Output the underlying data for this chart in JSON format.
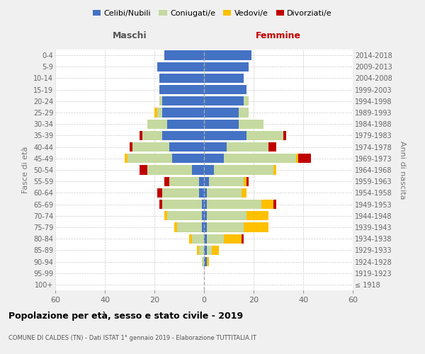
{
  "age_groups": [
    "100+",
    "95-99",
    "90-94",
    "85-89",
    "80-84",
    "75-79",
    "70-74",
    "65-69",
    "60-64",
    "55-59",
    "50-54",
    "45-49",
    "40-44",
    "35-39",
    "30-34",
    "25-29",
    "20-24",
    "15-19",
    "10-14",
    "5-9",
    "0-4"
  ],
  "birth_years": [
    "≤ 1918",
    "1919-1923",
    "1924-1928",
    "1929-1933",
    "1934-1938",
    "1939-1943",
    "1944-1948",
    "1949-1953",
    "1954-1958",
    "1959-1963",
    "1964-1968",
    "1969-1973",
    "1974-1978",
    "1979-1983",
    "1984-1988",
    "1989-1993",
    "1994-1998",
    "1999-2003",
    "2004-2008",
    "2009-2013",
    "2014-2018"
  ],
  "colors": {
    "celibi": "#4472c4",
    "coniugati": "#c5d9a0",
    "vedovi": "#ffc000",
    "divorziati": "#c00000"
  },
  "male": {
    "celibi": [
      0,
      0,
      0,
      0,
      0,
      1,
      1,
      1,
      2,
      2,
      5,
      13,
      14,
      17,
      15,
      17,
      17,
      18,
      18,
      19,
      16
    ],
    "coniugati": [
      0,
      0,
      1,
      2,
      5,
      10,
      14,
      16,
      15,
      12,
      18,
      18,
      15,
      8,
      8,
      2,
      1,
      0,
      0,
      0,
      0
    ],
    "vedovi": [
      0,
      0,
      0,
      1,
      1,
      1,
      1,
      0,
      0,
      0,
      0,
      1,
      0,
      0,
      0,
      1,
      0,
      0,
      0,
      0,
      0
    ],
    "divorziati": [
      0,
      0,
      0,
      0,
      0,
      0,
      0,
      1,
      2,
      2,
      3,
      0,
      1,
      1,
      0,
      0,
      0,
      0,
      0,
      0,
      0
    ]
  },
  "female": {
    "celibi": [
      0,
      0,
      1,
      1,
      1,
      1,
      1,
      1,
      1,
      2,
      4,
      8,
      9,
      17,
      14,
      14,
      16,
      17,
      16,
      18,
      19
    ],
    "coniugati": [
      0,
      0,
      0,
      2,
      7,
      15,
      16,
      22,
      14,
      14,
      24,
      29,
      17,
      15,
      10,
      4,
      2,
      0,
      0,
      0,
      0
    ],
    "vedovi": [
      0,
      0,
      1,
      3,
      7,
      10,
      9,
      5,
      2,
      1,
      1,
      1,
      0,
      0,
      0,
      0,
      0,
      0,
      0,
      0,
      0
    ],
    "divorziati": [
      0,
      0,
      0,
      0,
      1,
      0,
      0,
      1,
      0,
      1,
      0,
      5,
      3,
      1,
      0,
      0,
      0,
      0,
      0,
      0,
      0
    ]
  },
  "title": "Popolazione per età, sesso e stato civile - 2019",
  "subtitle": "COMUNE DI CALDES (TN) - Dati ISTAT 1° gennaio 2019 - Elaborazione TUTTITALIA.IT",
  "maschi_label": "Maschi",
  "femmine_label": "Femmine",
  "ylabel_left": "Fasce di età",
  "ylabel_right": "Anni di nascita",
  "xlim": 60,
  "legend_labels": [
    "Celibi/Nubili",
    "Coniugati/e",
    "Vedovi/e",
    "Divorziati/e"
  ],
  "background_color": "#f0f0f0",
  "plot_background": "#ffffff"
}
